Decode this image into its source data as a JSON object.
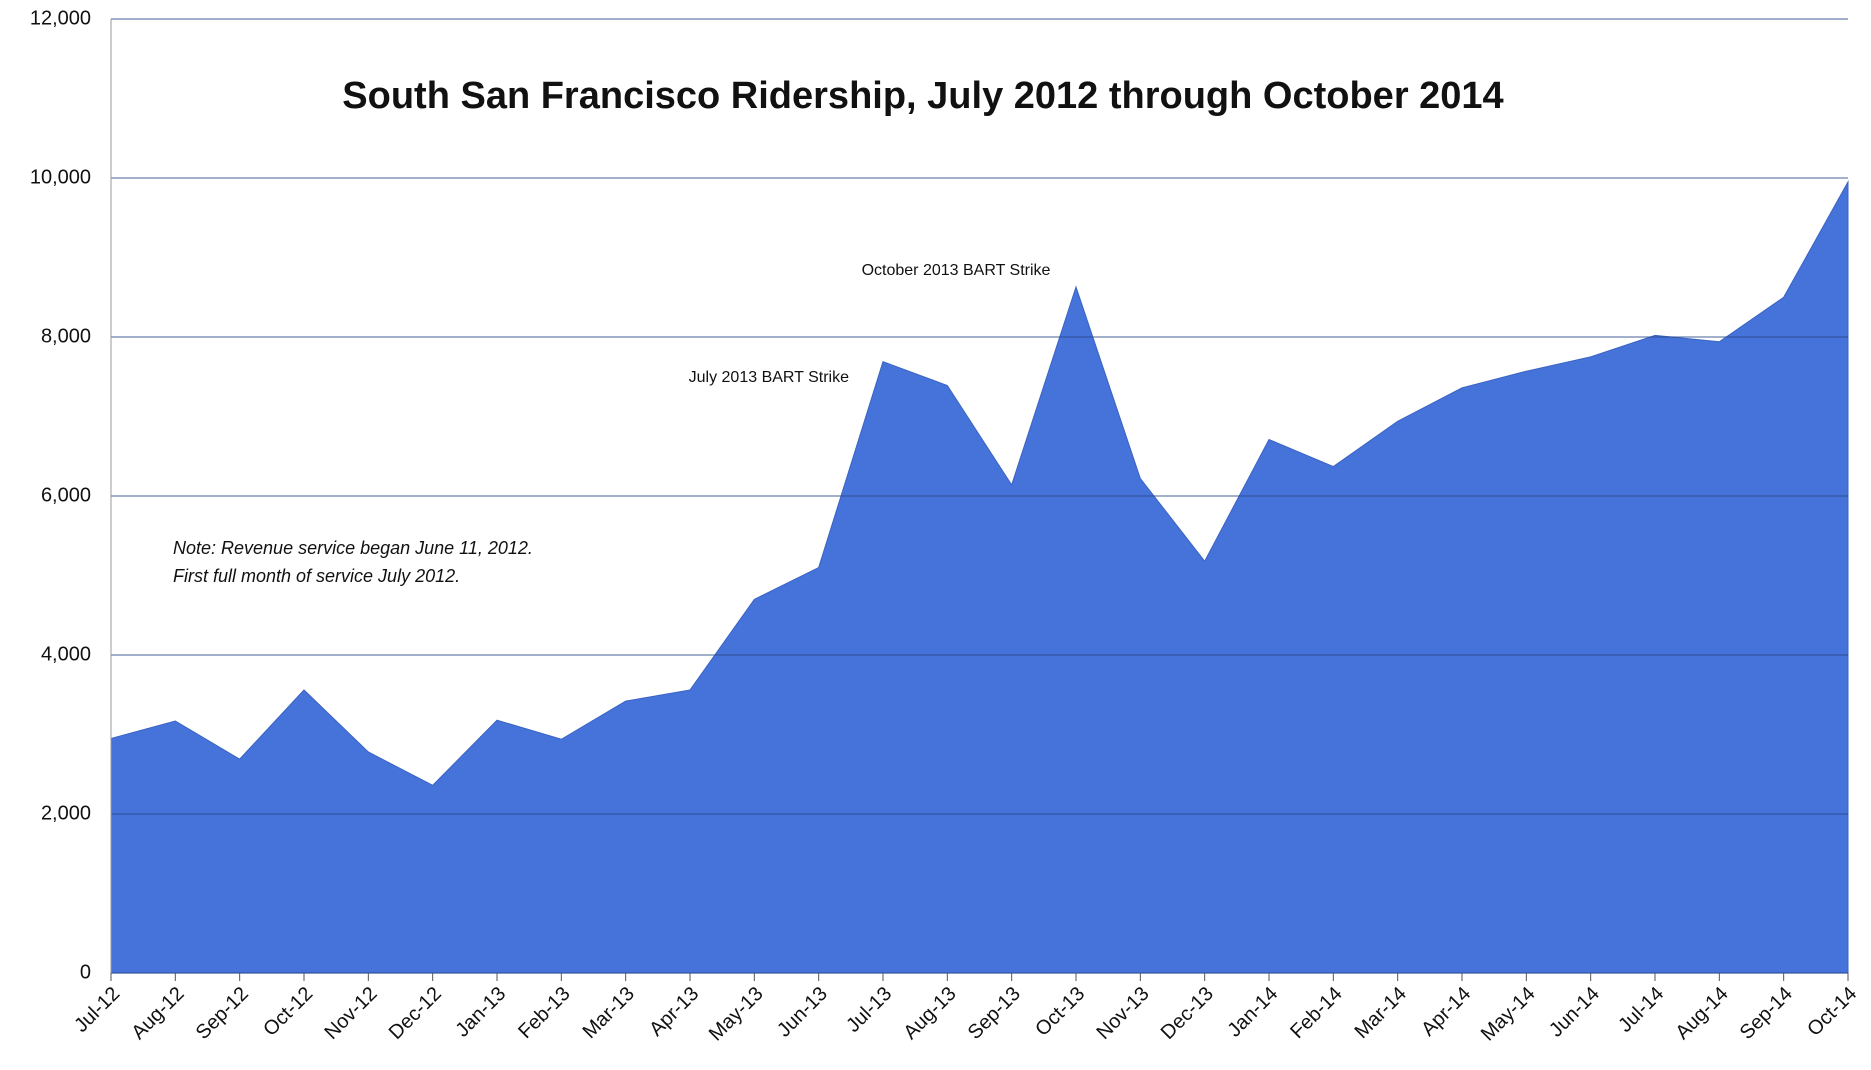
{
  "chart_data": {
    "type": "area",
    "title": "South San Francisco Ridership, July 2012 through October 2014",
    "categories": [
      "Jul-12",
      "Aug-12",
      "Sep-12",
      "Oct-12",
      "Nov-12",
      "Dec-12",
      "Jan-13",
      "Feb-13",
      "Mar-13",
      "Apr-13",
      "May-13",
      "Jun-13",
      "Jul-13",
      "Aug-13",
      "Sep-13",
      "Oct-13",
      "Nov-13",
      "Dec-13",
      "Jan-14",
      "Feb-14",
      "Mar-14",
      "Apr-14",
      "May-14",
      "Jun-14",
      "Jul-14",
      "Aug-14",
      "Sep-14",
      "Oct-14"
    ],
    "values": [
      2950,
      3170,
      2690,
      3560,
      2780,
      2360,
      3180,
      2940,
      3420,
      3560,
      4700,
      5100,
      7690,
      7390,
      6140,
      8630,
      6220,
      5180,
      6710,
      6370,
      6940,
      7360,
      7570,
      7750,
      8020,
      7940,
      8500,
      9950
    ],
    "color": "#4673d9",
    "ylim": [
      0,
      12000
    ],
    "yticks": [
      0,
      {
        "value": 2000,
        "label": "2,000"
      },
      {
        "value": 4000,
        "label": "4,000"
      },
      {
        "value": 6000,
        "label": "6,000"
      },
      {
        "value": 8000,
        "label": "8,000"
      },
      {
        "value": 10000,
        "label": "10,000"
      },
      {
        "value": 12000,
        "label": "12,000"
      }
    ],
    "grid": true,
    "annotations": [
      "October 2013 BART Strike",
      "July 2013 BART Strike"
    ],
    "note": [
      "Note: Revenue service began June 11, 2012.",
      "First full month of service July 2012."
    ]
  }
}
